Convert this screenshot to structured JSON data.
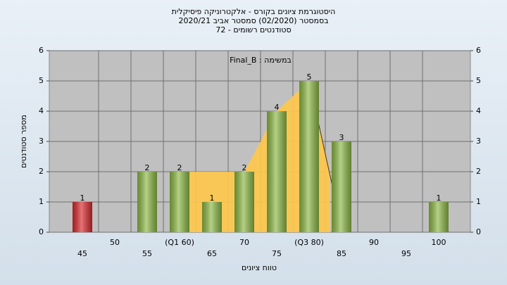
{
  "chart_data": {
    "type": "bar",
    "title": "היסטוגרמת ציונים בקורס - אלקטרוניקה פיסיקלית",
    "subtitle": "בסמסטר  (02/2020)  סמסטר אביב 2020/21",
    "subtitle2": "סטודנטים רשומים - 72",
    "annotation": "במשימה : Final_B",
    "x_label": "טווח ציונים",
    "y_label": "מספר סטודנטים",
    "categories": [
      "45",
      "50",
      "55",
      "(Q1 60)",
      "65",
      "70",
      "75",
      "(Q3 80)",
      "85",
      "90",
      "95",
      "100"
    ],
    "values": [
      1,
      0,
      2,
      2,
      1,
      2,
      4,
      5,
      3,
      0,
      0,
      1
    ],
    "colors": [
      "#d8282c",
      "#8cb845",
      "#8cb845",
      "#8cb845",
      "#8cb845",
      "#8cb845",
      "#8cb845",
      "#8cb845",
      "#8cb845",
      "#8cb845",
      "#8cb845",
      "#8cb845"
    ],
    "ylim": [
      0,
      6
    ],
    "yticks": [
      0,
      1,
      2,
      3,
      4,
      5,
      6
    ],
    "y2lim": [
      0,
      6
    ],
    "y2ticks": [
      0,
      1,
      2,
      3,
      4,
      5,
      6
    ],
    "grid": true
  }
}
